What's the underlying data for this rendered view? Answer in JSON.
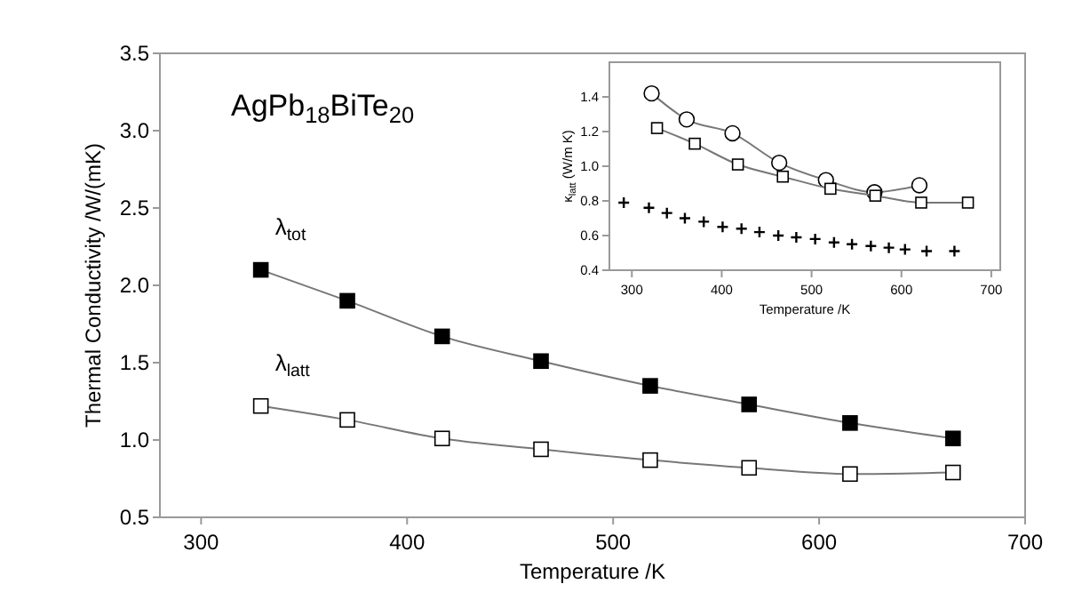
{
  "chart_data": [
    {
      "type": "line",
      "xlabel": "Temperature /K",
      "ylabel": "Thermal Conductivity /W/(mK)",
      "annotations": [
        "AgPb$_{18}$BiTe$_{20}$"
      ],
      "xlim": [
        280,
        700
      ],
      "xticks": [
        300,
        400,
        500,
        600,
        700
      ],
      "ylim": [
        0.5,
        3.5
      ],
      "yticks": [
        0.5,
        {
          "value": 1,
          "label": "1.0"
        },
        1.5,
        {
          "value": 2,
          "label": "2.0"
        },
        2.5,
        {
          "value": 3,
          "label": "3.0"
        },
        3.5
      ],
      "series": [
        {
          "name": "λ$_{tot}$",
          "color": "#000000",
          "marker": "square",
          "x": [
            329,
            371,
            417,
            465,
            518,
            566,
            615,
            665
          ],
          "values": [
            2.1,
            1.9,
            1.67,
            1.51,
            1.35,
            1.23,
            1.11,
            1.01
          ]
        },
        {
          "name": "λ$_{latt}$",
          "color": "#ffffff",
          "marker": "square",
          "x": [
            329,
            371,
            417,
            465,
            518,
            566,
            615,
            665
          ],
          "values": [
            1.22,
            1.13,
            1.01,
            0.94,
            0.87,
            0.82,
            0.78,
            0.79
          ]
        }
      ]
    },
    {
      "type": "line",
      "xlabel": "Temperature /K",
      "ylabel": "κ$_{latt}$ (W/m K)",
      "xlim": [
        275,
        710
      ],
      "xticks": [
        300,
        400,
        500,
        600,
        700
      ],
      "ylim": [
        0.4,
        1.6
      ],
      "yticks": [
        0.4,
        0.6,
        0.8,
        {
          "value": 1,
          "label": "1.0"
        },
        1.2,
        1.4
      ],
      "series": [
        {
          "color": "#ffffff",
          "marker": "circle",
          "x": [
            322,
            361,
            412,
            464,
            516,
            570,
            620
          ],
          "values": [
            1.42,
            1.27,
            1.19,
            1.02,
            0.92,
            0.85,
            0.89
          ]
        },
        {
          "color": "#ffffff",
          "marker": "square",
          "x": [
            328,
            370,
            418,
            468,
            521,
            571,
            622,
            674
          ],
          "values": [
            1.22,
            1.13,
            1.01,
            0.94,
            0.87,
            0.83,
            0.79,
            0.79
          ]
        },
        {
          "type": "scatter",
          "color": "#000000",
          "marker": "cross",
          "x": [
            291,
            319,
            339,
            359,
            380,
            401,
            422,
            442,
            463,
            483,
            504,
            525,
            545,
            566,
            586,
            604,
            628,
            659
          ],
          "values": [
            0.79,
            0.76,
            0.73,
            0.7,
            0.68,
            0.65,
            0.64,
            0.62,
            0.6,
            0.59,
            0.58,
            0.56,
            0.55,
            0.54,
            0.53,
            0.52,
            0.51,
            0.51
          ]
        }
      ]
    }
  ]
}
